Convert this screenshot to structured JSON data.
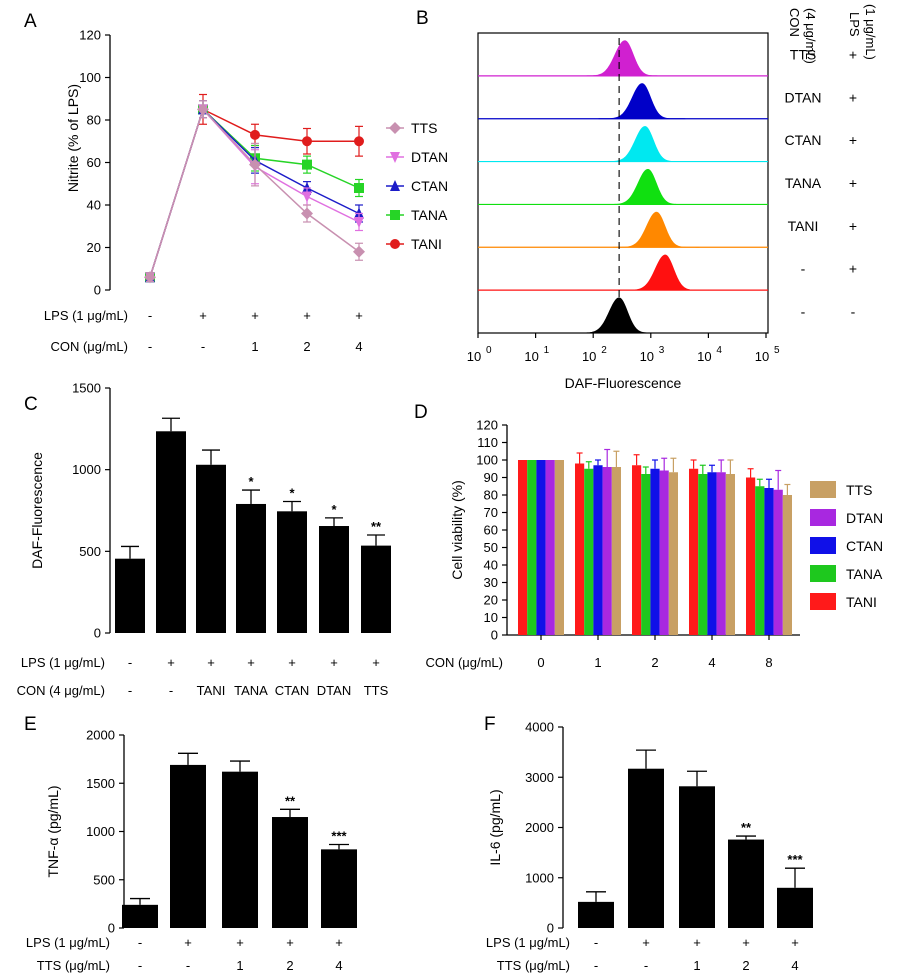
{
  "chart_data": [
    {
      "panel": "A",
      "type": "line",
      "ylabel": "Nitrite (% of LPS)",
      "ylim": [
        0,
        120
      ],
      "yticks": [
        0,
        20,
        40,
        60,
        80,
        100,
        120
      ],
      "rows": [
        {
          "label": "LPS (1 μg/mL)",
          "values": [
            "-",
            "+",
            "+",
            "+",
            "+"
          ]
        },
        {
          "label": "CON (μg/mL)",
          "values": [
            "-",
            "-",
            "1",
            "2",
            "4"
          ]
        }
      ],
      "series": [
        {
          "name": "TTS",
          "color": "#c890b0",
          "marker": "diamond",
          "values": [
            6,
            85,
            59,
            36,
            18
          ],
          "errors": [
            2,
            4,
            10,
            4,
            4
          ]
        },
        {
          "name": "DTAN",
          "color": "#e070e0",
          "marker": "triangle-down",
          "values": [
            6,
            85,
            58,
            44,
            32
          ],
          "errors": [
            2,
            4,
            8,
            4,
            4
          ]
        },
        {
          "name": "CTAN",
          "color": "#1c1cc8",
          "marker": "triangle-up",
          "values": [
            6,
            85,
            61,
            48,
            36
          ],
          "errors": [
            2,
            4,
            6,
            3,
            4
          ]
        },
        {
          "name": "TANA",
          "color": "#26d426",
          "marker": "square",
          "values": [
            6,
            85,
            62,
            59,
            48
          ],
          "errors": [
            2,
            4,
            6,
            4,
            4
          ]
        },
        {
          "name": "TANI",
          "color": "#e01c1c",
          "marker": "circle",
          "values": [
            6,
            85,
            73,
            70,
            70
          ],
          "errors": [
            2,
            7,
            5,
            6,
            7
          ]
        }
      ]
    },
    {
      "panel": "B",
      "type": "histogram-overlay",
      "xlabel": "DAF-Fluorescence",
      "xticks": [
        "0",
        "1",
        "2",
        "3",
        "4",
        "5"
      ],
      "tick_base": "10",
      "col_headers": [
        "CON (4 μg/mL)",
        "LPS (1 μg/mL)"
      ],
      "tracks": [
        {
          "con": "TTS",
          "lps": "+",
          "color": "#d020d0",
          "peak_log": 2.55
        },
        {
          "con": "DTAN",
          "lps": "+",
          "color": "#0000c8",
          "peak_log": 2.85
        },
        {
          "con": "CTAN",
          "lps": "+",
          "color": "#00e8f0",
          "peak_log": 2.9
        },
        {
          "con": "TANA",
          "lps": "+",
          "color": "#10e010",
          "peak_log": 2.95
        },
        {
          "con": "TANI",
          "lps": "+",
          "color": "#ff8800",
          "peak_log": 3.1
        },
        {
          "con": "-",
          "lps": "+",
          "color": "#ff1010",
          "peak_log": 3.25
        },
        {
          "con": "-",
          "lps": "-",
          "color": "#000000",
          "peak_log": 2.45
        }
      ]
    },
    {
      "panel": "C",
      "type": "bar",
      "ylabel": "DAF-Fluorescence",
      "ylim": [
        0,
        1500
      ],
      "yticks": [
        0,
        500,
        1000,
        1500
      ],
      "values": [
        455,
        1235,
        1030,
        790,
        745,
        655,
        535
      ],
      "errors": [
        75,
        80,
        90,
        85,
        60,
        50,
        65
      ],
      "significance": [
        "",
        "",
        "",
        "*",
        "*",
        "*",
        "**"
      ],
      "rows": [
        {
          "label": "LPS (1 μg/mL)",
          "values": [
            "-",
            "+",
            "+",
            "+",
            "+",
            "+",
            "+"
          ]
        },
        {
          "label": "CON (4 μg/mL)",
          "values": [
            "-",
            "-",
            "TANI",
            "TANA",
            "CTAN",
            "DTAN",
            "TTS"
          ]
        }
      ]
    },
    {
      "panel": "D",
      "type": "grouped-bar",
      "ylabel": "Cell viability (%)",
      "xlabel": "CON (μg/mL)",
      "categories": [
        "0",
        "1",
        "2",
        "4",
        "8"
      ],
      "ylim": [
        0,
        120
      ],
      "yticks": [
        0,
        10,
        20,
        30,
        40,
        50,
        60,
        70,
        80,
        90,
        100,
        110,
        120
      ],
      "series": [
        {
          "name": "TANI",
          "color": "#ff1a1a",
          "values": [
            100,
            98,
            97,
            95,
            90
          ],
          "errors": [
            0,
            6,
            6,
            5,
            5
          ]
        },
        {
          "name": "TANA",
          "color": "#1ec81e",
          "values": [
            100,
            95,
            92,
            92,
            85
          ],
          "errors": [
            0,
            4,
            4,
            5,
            4
          ]
        },
        {
          "name": "CTAN",
          "color": "#1010e8",
          "values": [
            100,
            97,
            95,
            93,
            84
          ],
          "errors": [
            0,
            3,
            5,
            4,
            5
          ]
        },
        {
          "name": "DTAN",
          "color": "#a828e0",
          "values": [
            100,
            96,
            94,
            93,
            83
          ],
          "errors": [
            0,
            10,
            7,
            7,
            11
          ]
        },
        {
          "name": "TTS",
          "color": "#c8a064",
          "values": [
            100,
            96,
            93,
            92,
            80
          ],
          "errors": [
            0,
            9,
            8,
            8,
            6
          ]
        }
      ],
      "legend_order": [
        "TTS",
        "DTAN",
        "CTAN",
        "TANA",
        "TANI"
      ]
    },
    {
      "panel": "E",
      "type": "bar",
      "ylabel": "TNF-α (pg/mL)",
      "ylim": [
        0,
        2000
      ],
      "yticks": [
        0,
        500,
        1000,
        1500,
        2000
      ],
      "values": [
        240,
        1690,
        1620,
        1150,
        815
      ],
      "errors": [
        65,
        120,
        110,
        80,
        50
      ],
      "significance": [
        "",
        "",
        "",
        "**",
        "***"
      ],
      "rows": [
        {
          "label": "LPS (1 μg/mL)",
          "values": [
            "-",
            "+",
            "+",
            "+",
            "+"
          ]
        },
        {
          "label": "TTS (μg/mL)",
          "values": [
            "-",
            "-",
            "1",
            "2",
            "4"
          ]
        }
      ]
    },
    {
      "panel": "F",
      "type": "bar",
      "ylabel": "IL-6 (pg/mL)",
      "ylim": [
        0,
        4000
      ],
      "yticks": [
        0,
        1000,
        2000,
        3000,
        4000
      ],
      "values": [
        520,
        3170,
        2820,
        1760,
        800
      ],
      "errors": [
        200,
        370,
        300,
        70,
        390
      ],
      "significance": [
        "",
        "",
        "",
        "**",
        "***"
      ],
      "rows": [
        {
          "label": "LPS (1 μg/mL)",
          "values": [
            "-",
            "+",
            "+",
            "+",
            "+"
          ]
        },
        {
          "label": "TTS (μg/mL)",
          "values": [
            "-",
            "-",
            "1",
            "2",
            "4"
          ]
        }
      ]
    }
  ]
}
